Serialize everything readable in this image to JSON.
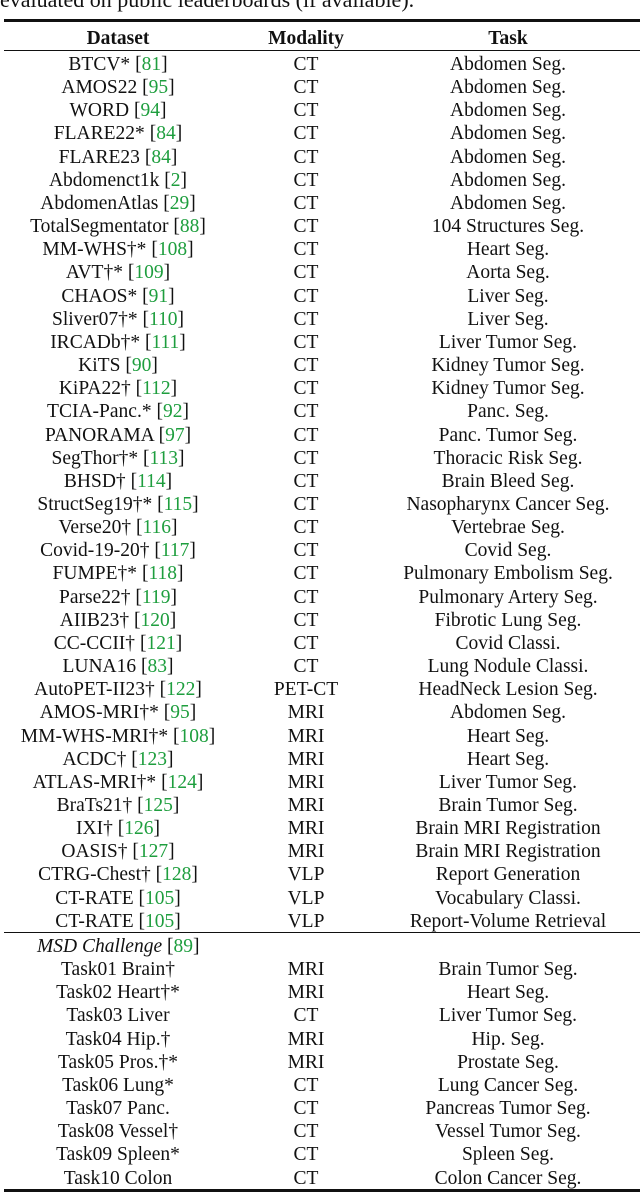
{
  "caption": "evaluated on public leaderboards (if available).",
  "colors": {
    "reference": "#1e9e3e"
  },
  "headers": {
    "dataset": "Dataset",
    "modality": "Modality",
    "task": "Task"
  },
  "rows": [
    {
      "name": "BTCV*",
      "ref": "81",
      "modality": "CT",
      "task": "Abdomen Seg."
    },
    {
      "name": "AMOS22",
      "ref": "95",
      "modality": "CT",
      "task": "Abdomen Seg."
    },
    {
      "name": "WORD",
      "ref": "94",
      "modality": "CT",
      "task": "Abdomen Seg."
    },
    {
      "name": "FLARE22*",
      "ref": "84",
      "modality": "CT",
      "task": "Abdomen Seg."
    },
    {
      "name": "FLARE23",
      "ref": "84",
      "modality": "CT",
      "task": "Abdomen Seg."
    },
    {
      "name": "Abdomenct1k",
      "ref": "2",
      "modality": "CT",
      "task": "Abdomen Seg."
    },
    {
      "name": "AbdomenAtlas",
      "ref": "29",
      "modality": "CT",
      "task": "Abdomen Seg."
    },
    {
      "name": "TotalSegmentator",
      "ref": "88",
      "modality": "CT",
      "task": "104 Structures Seg."
    },
    {
      "name": "MM-WHS†*",
      "ref": "108",
      "modality": "CT",
      "task": "Heart Seg."
    },
    {
      "name": "AVT†*",
      "ref": "109",
      "modality": "CT",
      "task": "Aorta Seg."
    },
    {
      "name": "CHAOS*",
      "ref": "91",
      "modality": "CT",
      "task": "Liver Seg."
    },
    {
      "name": "Sliver07†*",
      "ref": "110",
      "modality": "CT",
      "task": "Liver Seg."
    },
    {
      "name": "IRCADb†*",
      "ref": "111",
      "modality": "CT",
      "task": "Liver Tumor Seg."
    },
    {
      "name": "KiTS",
      "ref": "90",
      "modality": "CT",
      "task": "Kidney Tumor Seg."
    },
    {
      "name": "KiPA22†",
      "ref": "112",
      "modality": "CT",
      "task": "Kidney Tumor Seg."
    },
    {
      "name": "TCIA-Panc.*",
      "ref": "92",
      "modality": "CT",
      "task": "Panc. Seg."
    },
    {
      "name": "PANORAMA",
      "ref": "97",
      "modality": "CT",
      "task": "Panc. Tumor Seg."
    },
    {
      "name": "SegThor†*",
      "ref": "113",
      "modality": "CT",
      "task": "Thoracic Risk Seg."
    },
    {
      "name": "BHSD†",
      "ref": "114",
      "modality": "CT",
      "task": "Brain Bleed Seg."
    },
    {
      "name": "StructSeg19†*",
      "ref": "115",
      "modality": "CT",
      "task": "Nasopharynx Cancer Seg."
    },
    {
      "name": "Verse20†",
      "ref": "116",
      "modality": "CT",
      "task": "Vertebrae Seg."
    },
    {
      "name": "Covid-19-20†",
      "ref": "117",
      "modality": "CT",
      "task": "Covid Seg."
    },
    {
      "name": "FUMPE†*",
      "ref": "118",
      "modality": "CT",
      "task": "Pulmonary Embolism Seg."
    },
    {
      "name": "Parse22†",
      "ref": "119",
      "modality": "CT",
      "task": "Pulmonary Artery Seg."
    },
    {
      "name": "AIIB23†",
      "ref": "120",
      "modality": "CT",
      "task": "Fibrotic Lung Seg."
    },
    {
      "name": "CC-CCII†",
      "ref": "121",
      "modality": "CT",
      "task": "Covid Classi."
    },
    {
      "name": "LUNA16",
      "ref": "83",
      "modality": "CT",
      "task": "Lung Nodule Classi."
    },
    {
      "name": "AutoPET-II23†",
      "ref": "122",
      "modality": "PET-CT",
      "task": "HeadNeck Lesion Seg."
    },
    {
      "name": "AMOS-MRI†*",
      "ref": "95",
      "modality": "MRI",
      "task": "Abdomen Seg."
    },
    {
      "name": "MM-WHS-MRI†*",
      "ref": "108",
      "modality": "MRI",
      "task": "Heart Seg."
    },
    {
      "name": "ACDC†",
      "ref": "123",
      "modality": "MRI",
      "task": "Heart Seg."
    },
    {
      "name": "ATLAS-MRI†*",
      "ref": "124",
      "modality": "MRI",
      "task": "Liver Tumor Seg."
    },
    {
      "name": "BraTs21†",
      "ref": "125",
      "modality": "MRI",
      "task": "Brain Tumor Seg."
    },
    {
      "name": "IXI†",
      "ref": "126",
      "modality": "MRI",
      "task": "Brain MRI Registration"
    },
    {
      "name": "OASIS†",
      "ref": "127",
      "modality": "MRI",
      "task": "Brain MRI Registration"
    },
    {
      "name": "CTRG-Chest†",
      "ref": "128",
      "modality": "VLP",
      "task": "Report Generation"
    },
    {
      "name": "CT-RATE",
      "ref": "105",
      "modality": "VLP",
      "task": "Vocabulary Classi."
    },
    {
      "name": "CT-RATE",
      "ref": "105",
      "modality": "VLP",
      "task": "Report-Volume Retrieval"
    }
  ],
  "msd": {
    "title": "MSD Challenge",
    "ref": "89",
    "rows": [
      {
        "name": "Task01 Brain†",
        "modality": "MRI",
        "task": "Brain Tumor Seg."
      },
      {
        "name": "Task02 Heart†*",
        "modality": "MRI",
        "task": "Heart Seg."
      },
      {
        "name": "Task03 Liver",
        "modality": "CT",
        "task": "Liver Tumor Seg."
      },
      {
        "name": "Task04 Hip.†",
        "modality": "MRI",
        "task": "Hip. Seg."
      },
      {
        "name": "Task05 Pros.†*",
        "modality": "MRI",
        "task": "Prostate Seg."
      },
      {
        "name": "Task06 Lung*",
        "modality": "CT",
        "task": "Lung Cancer Seg."
      },
      {
        "name": "Task07 Panc.",
        "modality": "CT",
        "task": "Pancreas Tumor Seg."
      },
      {
        "name": "Task08 Vessel†",
        "modality": "CT",
        "task": "Vessel Tumor Seg."
      },
      {
        "name": "Task09 Spleen*",
        "modality": "CT",
        "task": "Spleen Seg."
      },
      {
        "name": "Task10 Colon",
        "modality": "CT",
        "task": "Colon Cancer Seg."
      }
    ]
  }
}
